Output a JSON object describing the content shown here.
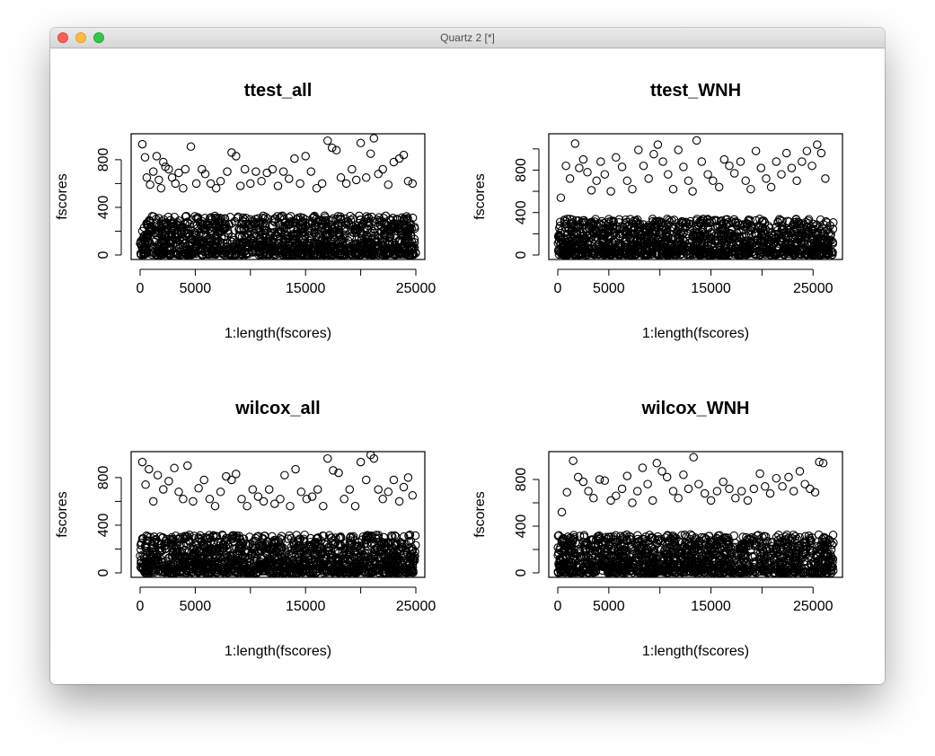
{
  "window": {
    "title": "Quartz 2 [*]"
  },
  "chart_data": [
    {
      "type": "scatter",
      "title": "ttest_all",
      "xlabel": "1:length(fscores)",
      "ylabel": "fscores",
      "xlim": [
        0,
        25000
      ],
      "ylim": [
        0,
        980
      ],
      "xticks": [
        0,
        5000,
        15000,
        25000
      ],
      "xticks_minor": [
        10000,
        20000
      ],
      "yticks": [
        0,
        400,
        800
      ],
      "yticks_minor": [
        200,
        600
      ],
      "grid": false,
      "points": [
        [
          200,
          930
        ],
        [
          450,
          820
        ],
        [
          600,
          650
        ],
        [
          900,
          590
        ],
        [
          1200,
          700
        ],
        [
          1500,
          830
        ],
        [
          1700,
          630
        ],
        [
          1900,
          560
        ],
        [
          2100,
          780
        ],
        [
          2300,
          740
        ],
        [
          2600,
          720
        ],
        [
          2900,
          650
        ],
        [
          3200,
          600
        ],
        [
          3500,
          690
        ],
        [
          3900,
          560
        ],
        [
          4100,
          720
        ],
        [
          4600,
          910
        ],
        [
          5100,
          600
        ],
        [
          5600,
          720
        ],
        [
          5900,
          680
        ],
        [
          6400,
          600
        ],
        [
          6900,
          560
        ],
        [
          7300,
          620
        ],
        [
          7900,
          700
        ],
        [
          8300,
          860
        ],
        [
          8700,
          830
        ],
        [
          9100,
          580
        ],
        [
          9500,
          720
        ],
        [
          10000,
          600
        ],
        [
          10500,
          700
        ],
        [
          11000,
          620
        ],
        [
          11500,
          690
        ],
        [
          12000,
          720
        ],
        [
          12500,
          580
        ],
        [
          13000,
          700
        ],
        [
          13500,
          640
        ],
        [
          14000,
          810
        ],
        [
          14500,
          600
        ],
        [
          15000,
          830
        ],
        [
          15500,
          700
        ],
        [
          16000,
          560
        ],
        [
          16500,
          600
        ],
        [
          17000,
          960
        ],
        [
          17400,
          900
        ],
        [
          17800,
          880
        ],
        [
          18200,
          650
        ],
        [
          18700,
          600
        ],
        [
          19200,
          720
        ],
        [
          19600,
          630
        ],
        [
          20000,
          940
        ],
        [
          20500,
          650
        ],
        [
          20900,
          850
        ],
        [
          21200,
          980
        ],
        [
          21600,
          680
        ],
        [
          22000,
          720
        ],
        [
          22500,
          590
        ],
        [
          23000,
          780
        ],
        [
          23500,
          810
        ],
        [
          23900,
          840
        ],
        [
          24300,
          620
        ],
        [
          24700,
          600
        ]
      ],
      "dense_band_max": 330
    },
    {
      "type": "scatter",
      "title": "ttest_WNH",
      "xlabel": "1:length(fscores)",
      "ylabel": "fscores",
      "xlim": [
        0,
        27000
      ],
      "ylim": [
        0,
        1100
      ],
      "xticks": [
        0,
        5000,
        15000,
        25000
      ],
      "xticks_minor": [
        10000,
        20000
      ],
      "yticks": [
        0,
        400,
        800
      ],
      "yticks_minor": [
        200,
        600,
        1000
      ],
      "grid": false,
      "points": [
        [
          300,
          540
        ],
        [
          800,
          840
        ],
        [
          1200,
          720
        ],
        [
          1700,
          1050
        ],
        [
          2100,
          820
        ],
        [
          2500,
          900
        ],
        [
          2900,
          780
        ],
        [
          3300,
          610
        ],
        [
          3800,
          700
        ],
        [
          4200,
          880
        ],
        [
          4600,
          760
        ],
        [
          5200,
          600
        ],
        [
          5700,
          920
        ],
        [
          6300,
          830
        ],
        [
          6800,
          700
        ],
        [
          7300,
          620
        ],
        [
          7900,
          990
        ],
        [
          8400,
          840
        ],
        [
          8900,
          720
        ],
        [
          9400,
          950
        ],
        [
          9800,
          1040
        ],
        [
          10300,
          880
        ],
        [
          10800,
          760
        ],
        [
          11300,
          620
        ],
        [
          11800,
          990
        ],
        [
          12300,
          830
        ],
        [
          12800,
          700
        ],
        [
          13200,
          600
        ],
        [
          13600,
          1080
        ],
        [
          14100,
          880
        ],
        [
          14700,
          760
        ],
        [
          15200,
          700
        ],
        [
          15800,
          640
        ],
        [
          16300,
          900
        ],
        [
          16800,
          840
        ],
        [
          17300,
          770
        ],
        [
          17900,
          880
        ],
        [
          18400,
          700
        ],
        [
          18900,
          620
        ],
        [
          19400,
          980
        ],
        [
          19900,
          820
        ],
        [
          20400,
          720
        ],
        [
          20900,
          640
        ],
        [
          21400,
          880
        ],
        [
          21900,
          760
        ],
        [
          22400,
          960
        ],
        [
          22900,
          820
        ],
        [
          23400,
          700
        ],
        [
          23900,
          880
        ],
        [
          24400,
          980
        ],
        [
          24900,
          840
        ],
        [
          25400,
          1040
        ],
        [
          25800,
          960
        ],
        [
          26200,
          720
        ]
      ],
      "dense_band_max": 340
    },
    {
      "type": "scatter",
      "title": "wilcox_all",
      "xlabel": "1:length(fscores)",
      "ylabel": "fscores",
      "xlim": [
        0,
        25000
      ],
      "ylim": [
        0,
        980
      ],
      "xticks": [
        0,
        5000,
        15000,
        25000
      ],
      "xticks_minor": [
        10000,
        20000
      ],
      "yticks": [
        0,
        400,
        800
      ],
      "yticks_minor": [
        200,
        600
      ],
      "grid": false,
      "points": [
        [
          200,
          930
        ],
        [
          500,
          740
        ],
        [
          800,
          870
        ],
        [
          1200,
          600
        ],
        [
          1600,
          820
        ],
        [
          2100,
          700
        ],
        [
          2600,
          770
        ],
        [
          3100,
          880
        ],
        [
          3500,
          680
        ],
        [
          3900,
          620
        ],
        [
          4300,
          900
        ],
        [
          4800,
          600
        ],
        [
          5300,
          710
        ],
        [
          5800,
          780
        ],
        [
          6300,
          620
        ],
        [
          6800,
          560
        ],
        [
          7300,
          680
        ],
        [
          7800,
          810
        ],
        [
          8300,
          780
        ],
        [
          8700,
          830
        ],
        [
          9200,
          620
        ],
        [
          9700,
          560
        ],
        [
          10200,
          700
        ],
        [
          10700,
          640
        ],
        [
          11200,
          600
        ],
        [
          11700,
          700
        ],
        [
          12200,
          580
        ],
        [
          12700,
          620
        ],
        [
          13100,
          820
        ],
        [
          13600,
          560
        ],
        [
          14100,
          870
        ],
        [
          14600,
          680
        ],
        [
          15100,
          620
        ],
        [
          15600,
          640
        ],
        [
          16100,
          700
        ],
        [
          16600,
          560
        ],
        [
          17000,
          960
        ],
        [
          17500,
          860
        ],
        [
          18000,
          840
        ],
        [
          18500,
          620
        ],
        [
          19000,
          700
        ],
        [
          19500,
          560
        ],
        [
          20000,
          930
        ],
        [
          20500,
          780
        ],
        [
          20900,
          990
        ],
        [
          21200,
          960
        ],
        [
          21600,
          700
        ],
        [
          22000,
          620
        ],
        [
          22500,
          680
        ],
        [
          23000,
          780
        ],
        [
          23500,
          600
        ],
        [
          23900,
          720
        ],
        [
          24300,
          800
        ],
        [
          24700,
          650
        ]
      ],
      "dense_band_max": 320
    },
    {
      "type": "scatter",
      "title": "wilcox_WNH",
      "xlabel": "1:length(fscores)",
      "ylabel": "fscores",
      "xlim": [
        0,
        27000
      ],
      "ylim": [
        0,
        1000
      ],
      "xticks": [
        0,
        5000,
        15000,
        25000
      ],
      "xticks_minor": [
        10000,
        20000
      ],
      "yticks": [
        0,
        400,
        800
      ],
      "yticks_minor": [
        200,
        600
      ],
      "grid": false,
      "points": [
        [
          400,
          520
        ],
        [
          900,
          690
        ],
        [
          1500,
          960
        ],
        [
          2000,
          820
        ],
        [
          2500,
          780
        ],
        [
          3000,
          700
        ],
        [
          3500,
          640
        ],
        [
          4100,
          800
        ],
        [
          4600,
          790
        ],
        [
          5200,
          620
        ],
        [
          5700,
          660
        ],
        [
          6300,
          720
        ],
        [
          6800,
          830
        ],
        [
          7300,
          600
        ],
        [
          7800,
          700
        ],
        [
          8300,
          900
        ],
        [
          8800,
          760
        ],
        [
          9300,
          620
        ],
        [
          9700,
          940
        ],
        [
          10200,
          870
        ],
        [
          10700,
          820
        ],
        [
          11300,
          700
        ],
        [
          11800,
          640
        ],
        [
          12300,
          840
        ],
        [
          12800,
          720
        ],
        [
          13300,
          990
        ],
        [
          13800,
          760
        ],
        [
          14400,
          680
        ],
        [
          15000,
          620
        ],
        [
          15600,
          700
        ],
        [
          16200,
          780
        ],
        [
          16800,
          720
        ],
        [
          17400,
          640
        ],
        [
          18000,
          700
        ],
        [
          18600,
          620
        ],
        [
          19200,
          720
        ],
        [
          19800,
          850
        ],
        [
          20300,
          740
        ],
        [
          20800,
          680
        ],
        [
          21400,
          810
        ],
        [
          22000,
          740
        ],
        [
          22600,
          820
        ],
        [
          23100,
          700
        ],
        [
          23700,
          870
        ],
        [
          24200,
          760
        ],
        [
          24700,
          720
        ],
        [
          25200,
          690
        ],
        [
          25600,
          950
        ],
        [
          26000,
          940
        ]
      ],
      "dense_band_max": 330
    }
  ]
}
